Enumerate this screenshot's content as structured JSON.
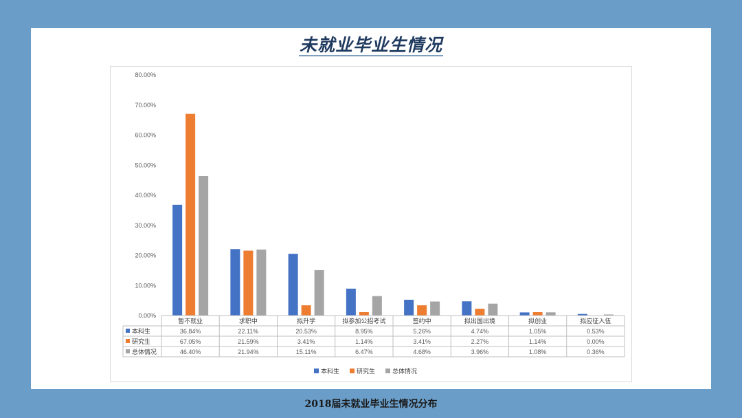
{
  "slide": {
    "title": "未就业毕业生情况",
    "caption": "2018届未就业毕业生情况分布"
  },
  "chart_data": {
    "type": "bar",
    "title": "",
    "xlabel": "",
    "ylabel": "",
    "ylim": [
      0,
      80
    ],
    "yticks": [
      "0.00%",
      "10.00%",
      "20.00%",
      "30.00%",
      "40.00%",
      "50.00%",
      "60.00%",
      "70.00%",
      "80.00%"
    ],
    "grid": false,
    "legend_position": "bottom",
    "categories": [
      "暂不就业",
      "求职中",
      "拟升学",
      "拟参加公招考试",
      "签约中",
      "拟出国出境",
      "拟创业",
      "拟应征入伍"
    ],
    "series": [
      {
        "name": "本科生",
        "color": "#4472c4",
        "values": [
          36.84,
          22.11,
          20.53,
          8.95,
          5.26,
          4.74,
          1.05,
          0.53
        ],
        "labels": [
          "36.84%",
          "22.11%",
          "20.53%",
          "8.95%",
          "5.26%",
          "4.74%",
          "1.05%",
          "0.53%"
        ]
      },
      {
        "name": "研究生",
        "color": "#ed7d31",
        "values": [
          67.05,
          21.59,
          3.41,
          1.14,
          3.41,
          2.27,
          1.14,
          0.0
        ],
        "labels": [
          "67.05%",
          "21.59%",
          "3.41%",
          "1.14%",
          "3.41%",
          "2.27%",
          "1.14%",
          "0.00%"
        ]
      },
      {
        "name": "总体情况",
        "color": "#a5a5a5",
        "values": [
          46.4,
          21.94,
          15.11,
          6.47,
          4.68,
          3.96,
          1.08,
          0.36
        ],
        "labels": [
          "46.40%",
          "21.94%",
          "15.11%",
          "6.47%",
          "4.68%",
          "3.96%",
          "1.08%",
          "0.36%"
        ]
      }
    ]
  }
}
